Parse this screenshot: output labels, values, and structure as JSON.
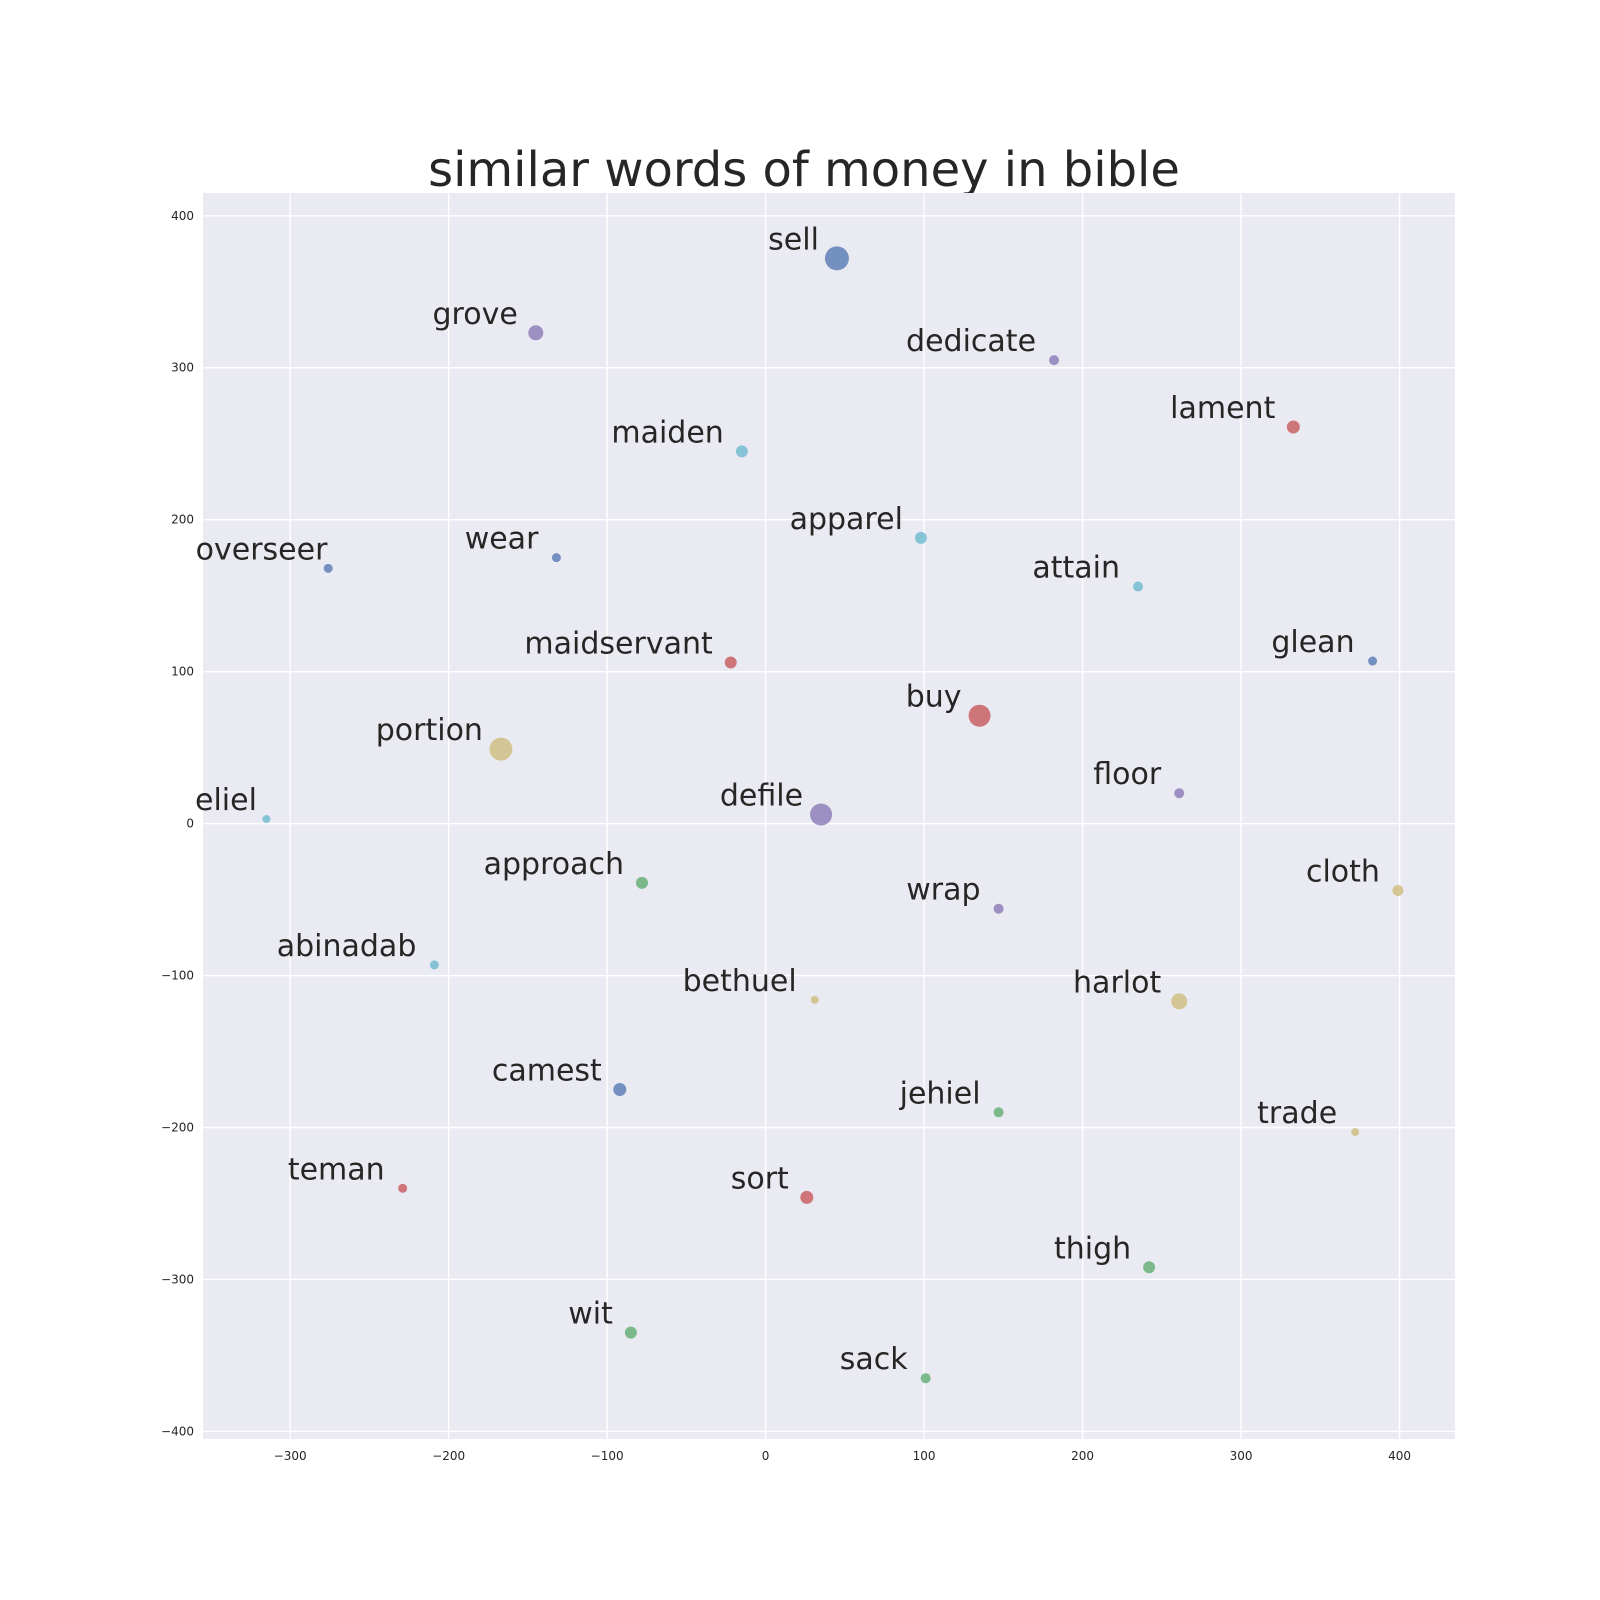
{
  "chart_data": {
    "type": "scatter",
    "title": "similar words of money in bible",
    "xlabel": "",
    "ylabel": "",
    "xlim": [
      -355,
      435
    ],
    "ylim": [
      -405,
      415
    ],
    "x_ticks": [
      -300,
      -200,
      -100,
      0,
      100,
      200,
      300,
      400
    ],
    "y_ticks": [
      -400,
      -300,
      -200,
      -100,
      0,
      100,
      200,
      300,
      400
    ],
    "x_tick_labels": [
      "−300",
      "−200",
      "−100",
      "0",
      "100",
      "200",
      "300",
      "400"
    ],
    "y_tick_labels": [
      "−400",
      "−300",
      "−200",
      "−100",
      "0",
      "100",
      "200",
      "300",
      "400"
    ],
    "grid": true,
    "background_color": "#eaeaf2",
    "colors": {
      "blue": "#4c72b0",
      "green": "#55a868",
      "red": "#c44e52",
      "purple": "#8172b2",
      "yellow": "#ccb974",
      "cyan": "#64b5cd"
    },
    "points": [
      {
        "label": "sell",
        "x": 45,
        "y": 372,
        "size": 12,
        "color": "blue"
      },
      {
        "label": "grove",
        "x": -145,
        "y": 323,
        "size": 7.5,
        "color": "purple"
      },
      {
        "label": "dedicate",
        "x": 182,
        "y": 305,
        "size": 5,
        "color": "purple"
      },
      {
        "label": "lament",
        "x": 333,
        "y": 261,
        "size": 6.5,
        "color": "red"
      },
      {
        "label": "maiden",
        "x": -15,
        "y": 245,
        "size": 6,
        "color": "cyan"
      },
      {
        "label": "apparel",
        "x": 98,
        "y": 188,
        "size": 6,
        "color": "cyan"
      },
      {
        "label": "overseer",
        "x": -276,
        "y": 168,
        "size": 4.5,
        "color": "blue"
      },
      {
        "label": "wear",
        "x": -132,
        "y": 175,
        "size": 4.5,
        "color": "blue"
      },
      {
        "label": "attain",
        "x": 235,
        "y": 156,
        "size": 5,
        "color": "cyan"
      },
      {
        "label": "maidservant",
        "x": -22,
        "y": 106,
        "size": 6,
        "color": "red"
      },
      {
        "label": "glean",
        "x": 383,
        "y": 107,
        "size": 4.5,
        "color": "blue"
      },
      {
        "label": "buy",
        "x": 135,
        "y": 71,
        "size": 11,
        "color": "red"
      },
      {
        "label": "portion",
        "x": -167,
        "y": 49,
        "size": 11.5,
        "color": "yellow"
      },
      {
        "label": "floor",
        "x": 261,
        "y": 20,
        "size": 5,
        "color": "purple"
      },
      {
        "label": "eliel",
        "x": -315,
        "y": 3,
        "size": 4,
        "color": "cyan"
      },
      {
        "label": "defile",
        "x": 35,
        "y": 6,
        "size": 11,
        "color": "purple"
      },
      {
        "label": "approach",
        "x": -78,
        "y": -39,
        "size": 6,
        "color": "green"
      },
      {
        "label": "wrap",
        "x": 147,
        "y": -56,
        "size": 5,
        "color": "purple"
      },
      {
        "label": "cloth",
        "x": 399,
        "y": -44,
        "size": 5.5,
        "color": "yellow"
      },
      {
        "label": "abinadab",
        "x": -209,
        "y": -93,
        "size": 4.5,
        "color": "cyan"
      },
      {
        "label": "bethuel",
        "x": 31,
        "y": -116,
        "size": 4,
        "color": "yellow"
      },
      {
        "label": "harlot",
        "x": 261,
        "y": -117,
        "size": 8,
        "color": "yellow"
      },
      {
        "label": "camest",
        "x": -92,
        "y": -175,
        "size": 6.5,
        "color": "blue"
      },
      {
        "label": "jehiel",
        "x": 147,
        "y": -190,
        "size": 5,
        "color": "green"
      },
      {
        "label": "trade",
        "x": 372,
        "y": -203,
        "size": 4,
        "color": "yellow"
      },
      {
        "label": "teman",
        "x": -229,
        "y": -240,
        "size": 4.5,
        "color": "red"
      },
      {
        "label": "sort",
        "x": 26,
        "y": -246,
        "size": 6.5,
        "color": "red"
      },
      {
        "label": "thigh",
        "x": 242,
        "y": -292,
        "size": 6,
        "color": "green"
      },
      {
        "label": "wit",
        "x": -85,
        "y": -335,
        "size": 6,
        "color": "green"
      },
      {
        "label": "sack",
        "x": 101,
        "y": -365,
        "size": 5,
        "color": "green"
      }
    ]
  }
}
